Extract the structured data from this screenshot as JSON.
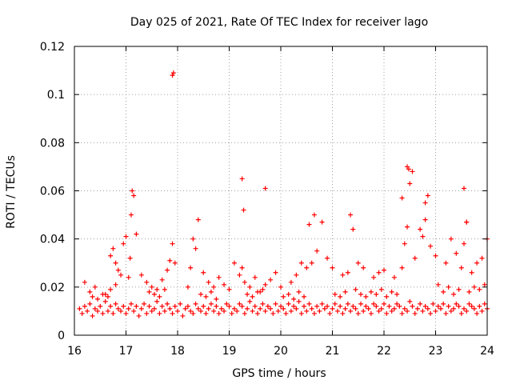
{
  "chart_data": {
    "type": "scatter",
    "title": "Day 025 of 2021, Rate Of TEC Index for receiver lago",
    "xlabel": "GPS time / hours",
    "ylabel": "ROTI / TECUs",
    "xlim": [
      16,
      24
    ],
    "ylim": [
      0,
      0.12
    ],
    "xticks": [
      16,
      17,
      18,
      19,
      20,
      21,
      22,
      23,
      24
    ],
    "yticks": [
      0,
      0.02,
      0.04,
      0.06,
      0.08,
      0.1,
      0.12
    ],
    "xtick_labels": [
      "16",
      "17",
      "18",
      "19",
      "20",
      "21",
      "22",
      "23",
      "24"
    ],
    "ytick_labels": [
      "0",
      "0.02",
      "0.04",
      "0.06",
      "0.08",
      "0.1",
      "0.12"
    ],
    "grid": true,
    "marker": "+",
    "color": "#ff0000",
    "series": [
      {
        "name": "ROTI",
        "x": [
          16.1,
          16.15,
          16.2,
          16.25,
          16.3,
          16.35,
          16.4,
          16.45,
          16.5,
          16.55,
          16.6,
          16.65,
          16.7,
          16.75,
          16.8,
          16.85,
          16.9,
          16.95,
          17.0,
          17.05,
          17.1,
          17.15,
          17.2,
          17.25,
          17.3,
          17.35,
          17.4,
          17.45,
          17.5,
          17.55,
          17.6,
          17.65,
          17.7,
          17.75,
          17.8,
          17.85,
          17.9,
          17.95,
          18.0,
          18.05,
          18.1,
          18.15,
          18.2,
          18.25,
          18.3,
          18.35,
          18.4,
          18.45,
          18.5,
          18.55,
          18.6,
          18.65,
          18.7,
          18.75,
          18.8,
          18.85,
          18.9,
          18.95,
          19.0,
          19.05,
          19.1,
          19.15,
          19.2,
          19.25,
          19.3,
          19.35,
          19.4,
          19.45,
          19.5,
          19.55,
          19.6,
          19.65,
          19.7,
          19.75,
          19.8,
          19.85,
          19.9,
          19.95,
          20.0,
          20.05,
          20.1,
          20.15,
          20.2,
          20.25,
          20.3,
          20.35,
          20.4,
          20.45,
          20.5,
          20.55,
          20.6,
          20.65,
          20.7,
          20.75,
          20.8,
          20.85,
          20.9,
          20.95,
          21.0,
          21.05,
          21.1,
          21.15,
          21.2,
          21.25,
          21.3,
          21.35,
          21.4,
          21.45,
          21.5,
          21.55,
          21.6,
          21.65,
          21.7,
          21.75,
          21.8,
          21.85,
          21.9,
          21.95,
          22.0,
          22.05,
          22.1,
          22.15,
          22.2,
          22.25,
          22.3,
          22.35,
          22.4,
          22.45,
          22.5,
          22.55,
          22.6,
          22.65,
          22.7,
          22.75,
          22.8,
          22.85,
          22.9,
          22.95,
          23.0,
          23.05,
          23.1,
          23.15,
          23.2,
          23.25,
          23.3,
          23.35,
          23.4,
          23.45,
          23.5,
          23.55,
          23.6,
          23.65,
          23.7,
          23.75,
          23.8,
          23.85,
          23.9,
          23.95,
          24.0,
          16.2,
          16.3,
          16.4,
          16.6,
          16.7,
          16.8,
          16.7,
          16.75,
          16.8,
          16.85,
          16.9,
          16.95,
          17.0,
          17.05,
          17.08,
          17.1,
          17.12,
          17.15,
          17.2,
          17.3,
          17.4,
          17.5,
          17.6,
          17.7,
          17.8,
          17.85,
          17.9,
          17.95,
          18.2,
          18.25,
          18.3,
          18.35,
          18.4,
          18.5,
          18.6,
          18.7,
          18.8,
          18.9,
          19.0,
          19.1,
          19.2,
          19.25,
          19.3,
          19.4,
          19.5,
          19.6,
          19.7,
          19.8,
          19.9,
          20.0,
          20.2,
          20.3,
          20.4,
          20.5,
          20.55,
          20.6,
          20.65,
          20.7,
          20.8,
          20.9,
          21.0,
          21.2,
          21.3,
          21.35,
          21.4,
          21.5,
          21.6,
          21.8,
          21.9,
          22.0,
          22.2,
          22.35,
          22.4,
          22.45,
          22.5,
          22.55,
          22.6,
          22.7,
          22.75,
          22.8,
          22.85,
          22.9,
          23.0,
          23.2,
          23.3,
          23.4,
          23.5,
          23.55,
          23.6,
          23.7,
          23.8,
          23.9,
          24.0,
          17.9,
          17.92,
          19.25,
          19.28,
          19.7,
          22.45,
          22.48,
          23.55,
          23.6,
          22.35,
          22.8,
          16.35,
          16.45,
          16.55,
          16.65,
          17.45,
          17.55,
          17.65,
          17.75,
          18.45,
          18.55,
          18.65,
          18.75,
          19.35,
          19.45,
          19.55,
          19.65,
          20.05,
          20.15,
          20.25,
          20.35,
          20.45,
          21.05,
          21.15,
          21.25,
          21.45,
          21.55,
          21.65,
          21.75,
          21.85,
          21.95,
          22.05,
          22.15,
          22.25,
          23.05,
          23.15,
          23.25,
          23.35,
          23.45,
          23.65,
          23.75,
          23.85,
          23.95
        ],
        "y": [
          0.011,
          0.009,
          0.012,
          0.01,
          0.013,
          0.008,
          0.011,
          0.01,
          0.012,
          0.009,
          0.014,
          0.01,
          0.012,
          0.009,
          0.013,
          0.011,
          0.01,
          0.012,
          0.009,
          0.011,
          0.013,
          0.01,
          0.012,
          0.008,
          0.011,
          0.013,
          0.009,
          0.012,
          0.01,
          0.011,
          0.014,
          0.009,
          0.012,
          0.01,
          0.013,
          0.011,
          0.009,
          0.012,
          0.01,
          0.013,
          0.008,
          0.011,
          0.012,
          0.01,
          0.009,
          0.013,
          0.011,
          0.01,
          0.012,
          0.009,
          0.011,
          0.013,
          0.01,
          0.012,
          0.009,
          0.011,
          0.01,
          0.013,
          0.012,
          0.009,
          0.011,
          0.01,
          0.013,
          0.012,
          0.009,
          0.011,
          0.014,
          0.01,
          0.012,
          0.009,
          0.011,
          0.013,
          0.01,
          0.012,
          0.011,
          0.009,
          0.013,
          0.01,
          0.012,
          0.011,
          0.009,
          0.013,
          0.01,
          0.012,
          0.011,
          0.014,
          0.009,
          0.012,
          0.01,
          0.013,
          0.011,
          0.009,
          0.012,
          0.01,
          0.013,
          0.011,
          0.012,
          0.009,
          0.011,
          0.013,
          0.01,
          0.012,
          0.009,
          0.011,
          0.013,
          0.01,
          0.012,
          0.011,
          0.009,
          0.013,
          0.01,
          0.012,
          0.011,
          0.009,
          0.013,
          0.012,
          0.01,
          0.011,
          0.013,
          0.009,
          0.012,
          0.01,
          0.011,
          0.013,
          0.012,
          0.009,
          0.011,
          0.01,
          0.014,
          0.012,
          0.009,
          0.011,
          0.013,
          0.01,
          0.012,
          0.011,
          0.009,
          0.013,
          0.01,
          0.012,
          0.011,
          0.013,
          0.009,
          0.012,
          0.01,
          0.011,
          0.013,
          0.012,
          0.009,
          0.011,
          0.01,
          0.013,
          0.012,
          0.011,
          0.009,
          0.012,
          0.01,
          0.013,
          0.011,
          0.022,
          0.018,
          0.02,
          0.017,
          0.019,
          0.021,
          0.033,
          0.036,
          0.03,
          0.027,
          0.025,
          0.038,
          0.041,
          0.024,
          0.032,
          0.05,
          0.06,
          0.058,
          0.042,
          0.025,
          0.022,
          0.02,
          0.019,
          0.023,
          0.027,
          0.031,
          0.038,
          0.03,
          0.02,
          0.028,
          0.04,
          0.036,
          0.048,
          0.026,
          0.022,
          0.02,
          0.024,
          0.021,
          0.019,
          0.03,
          0.025,
          0.028,
          0.022,
          0.02,
          0.024,
          0.018,
          0.021,
          0.023,
          0.026,
          0.02,
          0.022,
          0.025,
          0.03,
          0.028,
          0.046,
          0.03,
          0.05,
          0.035,
          0.047,
          0.032,
          0.028,
          0.025,
          0.026,
          0.05,
          0.044,
          0.03,
          0.028,
          0.024,
          0.026,
          0.027,
          0.024,
          0.028,
          0.038,
          0.045,
          0.063,
          0.068,
          0.032,
          0.044,
          0.041,
          0.048,
          0.058,
          0.037,
          0.033,
          0.03,
          0.04,
          0.034,
          0.028,
          0.038,
          0.047,
          0.026,
          0.03,
          0.032,
          0.04,
          0.108,
          0.109,
          0.065,
          0.052,
          0.061,
          0.07,
          0.069,
          0.061,
          0.047,
          0.057,
          0.055,
          0.016,
          0.015,
          0.017,
          0.016,
          0.018,
          0.017,
          0.016,
          0.019,
          0.017,
          0.016,
          0.018,
          0.015,
          0.017,
          0.016,
          0.018,
          0.019,
          0.016,
          0.017,
          0.015,
          0.018,
          0.016,
          0.017,
          0.016,
          0.018,
          0.019,
          0.017,
          0.016,
          0.018,
          0.017,
          0.019,
          0.016,
          0.018,
          0.017,
          0.021,
          0.018,
          0.02,
          0.017,
          0.019,
          0.018,
          0.02,
          0.019,
          0.021
        ]
      }
    ]
  }
}
